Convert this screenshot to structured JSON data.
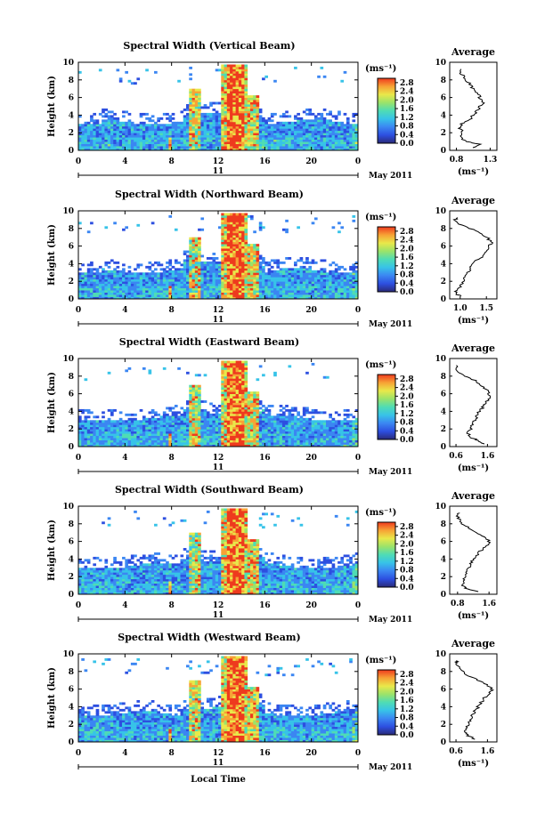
{
  "chart_data": {
    "type": "heatmap",
    "colorbar": {
      "unit": "(ms⁻¹)",
      "ticks": [
        "2.8",
        "2.4",
        "2.0",
        "1.6",
        "1.2",
        "0.8",
        "0.4",
        "0.0"
      ],
      "range": [
        0,
        3.0
      ],
      "colors": [
        "#2a2a78",
        "#2d4fe0",
        "#3b86f2",
        "#37c3e8",
        "#4fdcb4",
        "#9be36a",
        "#e9e84a",
        "#f7a235",
        "#ee3a1e"
      ]
    },
    "x": {
      "ticks": [
        "0",
        "4",
        "8",
        "12",
        "16",
        "20",
        "0"
      ],
      "range": [
        0,
        24
      ],
      "day_label": "11",
      "month_label": "May 2011",
      "label": "Local Time"
    },
    "y": {
      "ticks": [
        "0",
        "2",
        "4",
        "6",
        "8",
        "10"
      ],
      "range": [
        0,
        10
      ],
      "label": "Height (km)"
    },
    "average_label": "Average",
    "average_unit": "(ms⁻¹)",
    "panels": [
      {
        "title": "Spectral Width (Vertical Beam)",
        "avg_ticks": [
          "0.8",
          "1.3"
        ],
        "avg_range": [
          0.7,
          1.4
        ],
        "avg_profile": [
          [
            0.3,
            1.05
          ],
          [
            0.7,
            1.15
          ],
          [
            1.0,
            0.95
          ],
          [
            1.5,
            0.85
          ],
          [
            2.0,
            0.9
          ],
          [
            2.5,
            0.85
          ],
          [
            3.0,
            0.88
          ],
          [
            3.5,
            1.0
          ],
          [
            4.0,
            1.05
          ],
          [
            4.5,
            1.1
          ],
          [
            5.0,
            1.15
          ],
          [
            5.5,
            1.2
          ],
          [
            6.0,
            1.15
          ],
          [
            6.5,
            1.1
          ],
          [
            7.0,
            1.05
          ],
          [
            7.5,
            1.0
          ],
          [
            8.0,
            0.95
          ],
          [
            8.5,
            0.9
          ],
          [
            9.0,
            0.85
          ],
          [
            9.3,
            0.9
          ]
        ]
      },
      {
        "title": "Spectral Width (Northward Beam)",
        "avg_ticks": [
          "1.0",
          "1.5"
        ],
        "avg_range": [
          0.8,
          1.7
        ],
        "avg_profile": [
          [
            0.3,
            1.0
          ],
          [
            0.7,
            0.9
          ],
          [
            1.0,
            0.95
          ],
          [
            1.5,
            1.0
          ],
          [
            2.0,
            1.05
          ],
          [
            2.5,
            1.1
          ],
          [
            3.0,
            1.15
          ],
          [
            3.5,
            1.2
          ],
          [
            4.0,
            1.25
          ],
          [
            4.5,
            1.35
          ],
          [
            5.0,
            1.45
          ],
          [
            5.5,
            1.5
          ],
          [
            6.0,
            1.55
          ],
          [
            6.5,
            1.6
          ],
          [
            7.0,
            1.5
          ],
          [
            7.5,
            1.4
          ],
          [
            8.0,
            1.2
          ],
          [
            8.5,
            1.0
          ],
          [
            9.0,
            0.9
          ],
          [
            9.3,
            0.95
          ]
        ]
      },
      {
        "title": "Spectral Width (Eastward Beam)",
        "avg_ticks": [
          "0.6",
          "1.6"
        ],
        "avg_range": [
          0.4,
          1.9
        ],
        "avg_profile": [
          [
            0.3,
            1.5
          ],
          [
            0.7,
            1.3
          ],
          [
            1.0,
            1.1
          ],
          [
            1.5,
            1.0
          ],
          [
            2.0,
            1.05
          ],
          [
            2.5,
            1.1
          ],
          [
            3.0,
            1.2
          ],
          [
            3.5,
            1.25
          ],
          [
            4.0,
            1.35
          ],
          [
            4.5,
            1.45
          ],
          [
            5.0,
            1.55
          ],
          [
            5.5,
            1.7
          ],
          [
            6.0,
            1.65
          ],
          [
            6.5,
            1.55
          ],
          [
            7.0,
            1.4
          ],
          [
            7.5,
            1.2
          ],
          [
            8.0,
            0.9
          ],
          [
            8.5,
            0.7
          ],
          [
            9.0,
            0.6
          ],
          [
            9.3,
            0.6
          ]
        ]
      },
      {
        "title": "Spectral Width (Southward Beam)",
        "avg_ticks": [
          "0.8",
          "1.6"
        ],
        "avg_range": [
          0.6,
          1.8
        ],
        "avg_profile": [
          [
            0.3,
            1.3
          ],
          [
            0.7,
            1.0
          ],
          [
            1.0,
            0.9
          ],
          [
            1.5,
            0.95
          ],
          [
            2.0,
            1.0
          ],
          [
            2.5,
            1.05
          ],
          [
            3.0,
            1.1
          ],
          [
            3.5,
            1.15
          ],
          [
            4.0,
            1.2
          ],
          [
            4.5,
            1.3
          ],
          [
            5.0,
            1.4
          ],
          [
            5.5,
            1.55
          ],
          [
            6.0,
            1.6
          ],
          [
            6.5,
            1.5
          ],
          [
            7.0,
            1.3
          ],
          [
            7.5,
            1.1
          ],
          [
            8.0,
            0.9
          ],
          [
            8.5,
            0.85
          ],
          [
            9.0,
            0.8
          ],
          [
            9.3,
            0.85
          ]
        ]
      },
      {
        "title": "Spectral Width (Westward Beam)",
        "avg_ticks": [
          "0.6",
          "1.6"
        ],
        "avg_range": [
          0.4,
          1.9
        ],
        "avg_profile": [
          [
            0.3,
            1.2
          ],
          [
            0.7,
            1.0
          ],
          [
            1.0,
            0.9
          ],
          [
            1.5,
            0.95
          ],
          [
            2.0,
            1.0
          ],
          [
            2.5,
            1.05
          ],
          [
            3.0,
            1.1
          ],
          [
            3.5,
            1.2
          ],
          [
            4.0,
            1.3
          ],
          [
            4.5,
            1.4
          ],
          [
            5.0,
            1.5
          ],
          [
            5.5,
            1.65
          ],
          [
            6.0,
            1.75
          ],
          [
            6.5,
            1.6
          ],
          [
            7.0,
            1.3
          ],
          [
            7.5,
            1.0
          ],
          [
            8.0,
            0.8
          ],
          [
            8.5,
            0.7
          ],
          [
            9.0,
            0.6
          ],
          [
            9.3,
            0.6
          ]
        ]
      }
    ]
  }
}
